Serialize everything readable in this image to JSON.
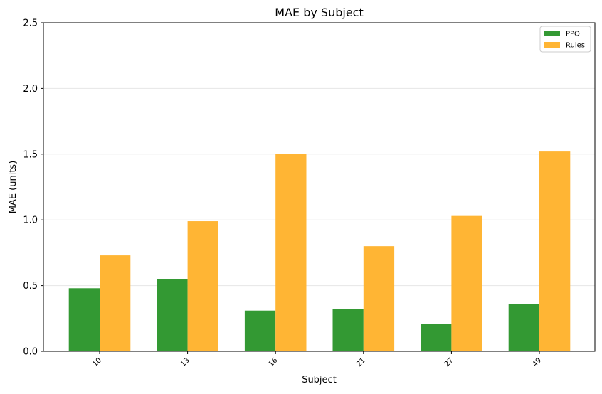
{
  "chart_data": {
    "type": "bar",
    "title": "MAE by Subject",
    "xlabel": "Subject",
    "ylabel": "MAE (units)",
    "categories": [
      "10",
      "13",
      "16",
      "21",
      "27",
      "49"
    ],
    "ylim": [
      0,
      2.5
    ],
    "yticks": [
      "0.0",
      "0.5",
      "1.0",
      "1.5",
      "2.0",
      "2.5"
    ],
    "grid": "horizontal",
    "legend_position": "top-right",
    "series": [
      {
        "name": "PPO",
        "color": "#339933",
        "values": [
          0.48,
          0.55,
          0.31,
          0.32,
          0.21,
          0.36
        ]
      },
      {
        "name": "Rules",
        "color": "#FFB534",
        "values": [
          0.73,
          0.99,
          1.5,
          0.8,
          1.03,
          1.52
        ]
      }
    ]
  }
}
